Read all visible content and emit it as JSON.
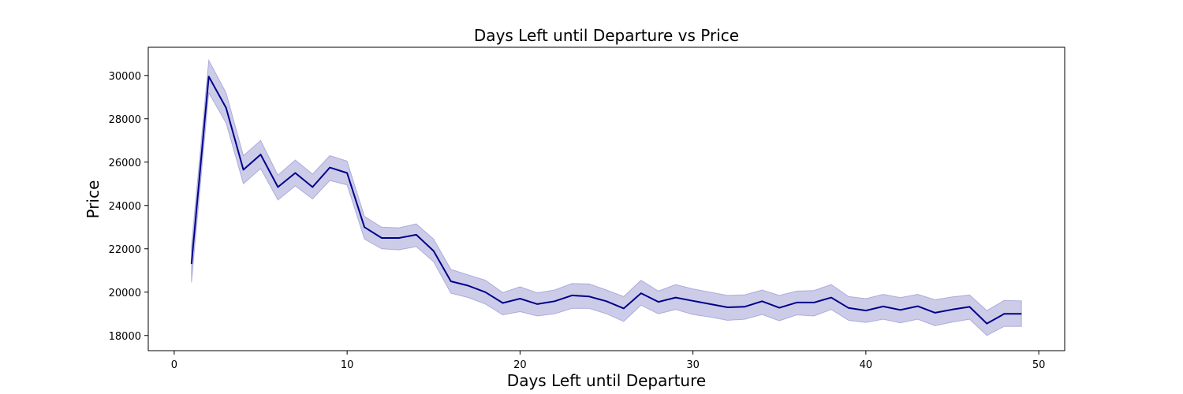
{
  "chart_data": {
    "type": "line",
    "title": "Days Left until Departure vs Price",
    "xlabel": "Days Left until Departure",
    "ylabel": "Price",
    "xlim": [
      -1.5,
      51.5
    ],
    "ylim": [
      17300,
      31300
    ],
    "xticks": [
      0,
      10,
      20,
      30,
      40,
      50
    ],
    "yticks": [
      18000,
      20000,
      22000,
      24000,
      26000,
      28000,
      30000
    ],
    "grid": false,
    "colors": {
      "line": "#00008b",
      "band": "#6d6dc0"
    },
    "series": [
      {
        "x": [
          1,
          2,
          3,
          4,
          5,
          6,
          7,
          8,
          9,
          10,
          11,
          12,
          13,
          14,
          15,
          16,
          17,
          18,
          19,
          20,
          21,
          22,
          23,
          24,
          25,
          26,
          27,
          28,
          29,
          30,
          31,
          32,
          33,
          34,
          35,
          36,
          37,
          38,
          39,
          40,
          41,
          42,
          43,
          44,
          45,
          46,
          47,
          48,
          49
        ],
        "values": [
          21300,
          29950,
          28500,
          25650,
          26350,
          24850,
          25500,
          24850,
          25750,
          25500,
          23000,
          22500,
          22500,
          22650,
          21900,
          20500,
          20300,
          20000,
          19500,
          19700,
          19450,
          19580,
          19850,
          19800,
          19580,
          19250,
          19950,
          19550,
          19750,
          19600,
          19450,
          19300,
          19330,
          19580,
          19280,
          19520,
          19520,
          19750,
          19270,
          19150,
          19340,
          19180,
          19350,
          19050,
          19200,
          19320,
          18550,
          19000,
          19000
        ],
        "lower": [
          20450,
          29200,
          27800,
          25000,
          25700,
          24250,
          24900,
          24300,
          25150,
          24950,
          22450,
          22000,
          21950,
          22100,
          21400,
          19950,
          19750,
          19450,
          18950,
          19100,
          18900,
          19000,
          19250,
          19250,
          19000,
          18650,
          19400,
          19000,
          19200,
          18970,
          18850,
          18700,
          18750,
          18970,
          18680,
          18950,
          18900,
          19200,
          18700,
          18600,
          18750,
          18580,
          18750,
          18450,
          18620,
          18750,
          18000,
          18420,
          18420
        ],
        "upper": [
          22150,
          30700,
          29200,
          26300,
          27000,
          25400,
          26100,
          25450,
          26300,
          26050,
          23500,
          23000,
          22970,
          23150,
          22450,
          21050,
          20800,
          20550,
          19980,
          20250,
          19970,
          20100,
          20400,
          20380,
          20100,
          19800,
          20550,
          20050,
          20350,
          20150,
          20000,
          19850,
          19880,
          20100,
          19850,
          20050,
          20080,
          20350,
          19800,
          19700,
          19900,
          19750,
          19900,
          19650,
          19780,
          19870,
          19150,
          19620,
          19600
        ]
      }
    ]
  }
}
